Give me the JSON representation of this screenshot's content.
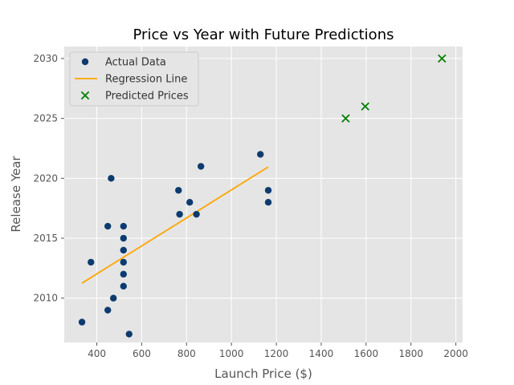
{
  "chart_data": {
    "type": "scatter",
    "title": "Price vs Year with Future Predictions",
    "xlabel": "Launch Price ($)",
    "ylabel": "Release Year",
    "xlim": [
      255,
      2030
    ],
    "ylim": [
      2006.3,
      2031.0
    ],
    "xticks": [
      400,
      600,
      800,
      1000,
      1200,
      1400,
      1600,
      1800,
      2000
    ],
    "yticks": [
      2010,
      2015,
      2020,
      2025,
      2030
    ],
    "grid": true,
    "legend_position": "top-left",
    "series": [
      {
        "name": "Actual Data",
        "kind": "scatter",
        "marker": "circle",
        "color": "#0d3b6e",
        "points": [
          {
            "x": 334,
            "y": 2008
          },
          {
            "x": 374,
            "y": 2013
          },
          {
            "x": 449,
            "y": 2009
          },
          {
            "x": 449,
            "y": 2016
          },
          {
            "x": 464,
            "y": 2020
          },
          {
            "x": 474,
            "y": 2010
          },
          {
            "x": 519,
            "y": 2011
          },
          {
            "x": 519,
            "y": 2012
          },
          {
            "x": 519,
            "y": 2013
          },
          {
            "x": 519,
            "y": 2014
          },
          {
            "x": 519,
            "y": 2015
          },
          {
            "x": 519,
            "y": 2016
          },
          {
            "x": 544,
            "y": 2007
          },
          {
            "x": 764,
            "y": 2019
          },
          {
            "x": 769,
            "y": 2017
          },
          {
            "x": 814,
            "y": 2018
          },
          {
            "x": 844,
            "y": 2017
          },
          {
            "x": 864,
            "y": 2021
          },
          {
            "x": 1129,
            "y": 2022
          },
          {
            "x": 1164,
            "y": 2019
          },
          {
            "x": 1164,
            "y": 2018
          }
        ]
      },
      {
        "name": "Regression Line",
        "kind": "line",
        "color": "#ffa500",
        "points": [
          {
            "x": 334,
            "y": 2011.25
          },
          {
            "x": 1164,
            "y": 2020.95
          }
        ]
      },
      {
        "name": "Predicted Prices",
        "kind": "scatter",
        "marker": "x",
        "color": "#008000",
        "points": [
          {
            "x": 1509,
            "y": 2025
          },
          {
            "x": 1596,
            "y": 2026
          },
          {
            "x": 1938,
            "y": 2030
          }
        ]
      }
    ]
  }
}
